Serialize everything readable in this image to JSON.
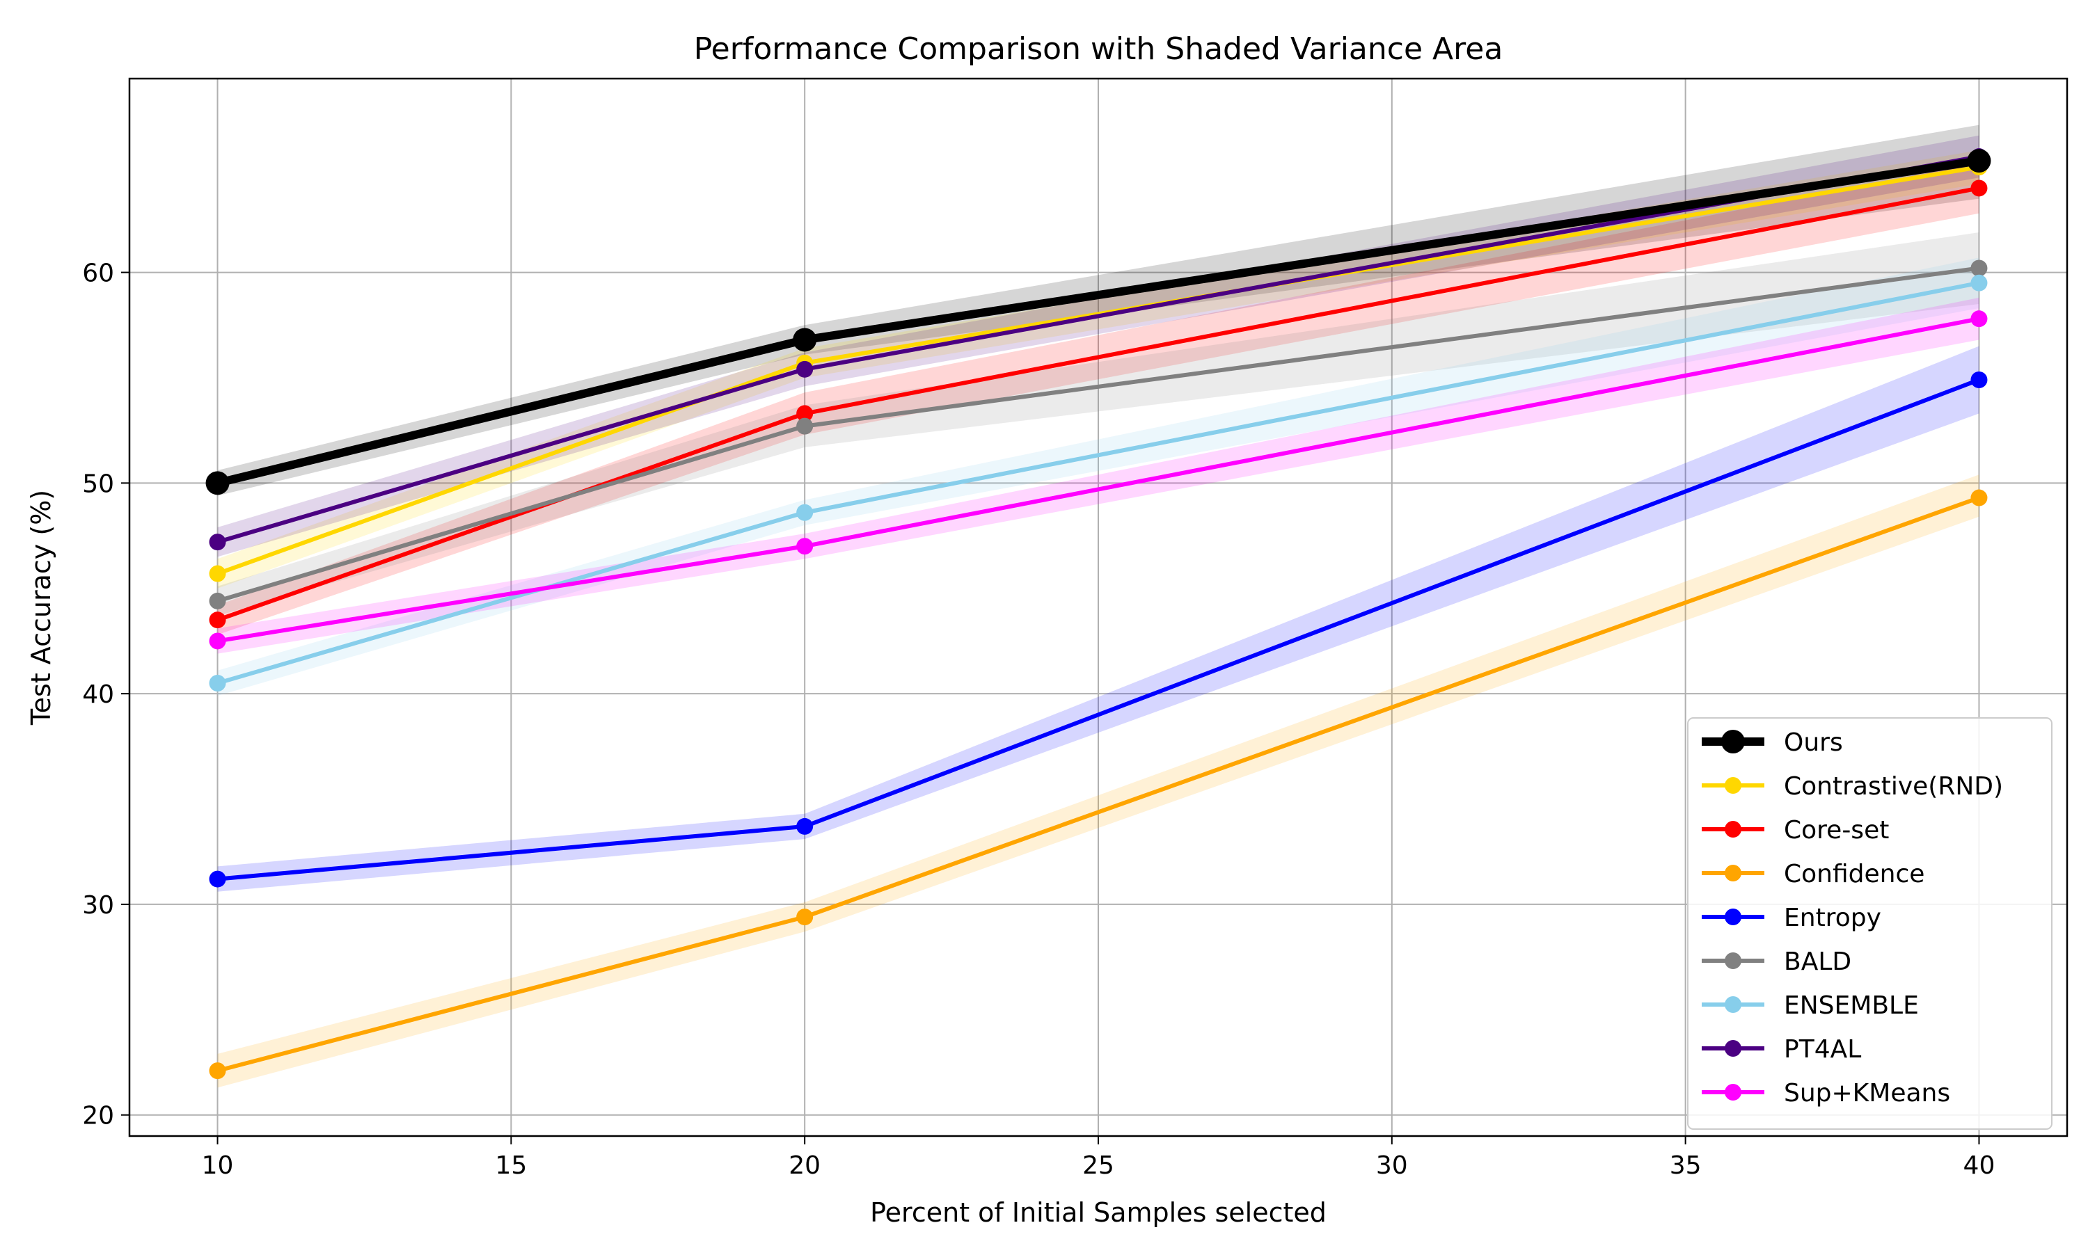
{
  "chart_data": {
    "type": "line",
    "title": "Performance Comparison with Shaded Variance Area",
    "xlabel": "Percent of Initial Samples selected",
    "ylabel": "Test Accuracy (%)",
    "xlim": [
      8.5,
      41.5
    ],
    "ylim": [
      19,
      69.2
    ],
    "xticks": [
      10,
      15,
      20,
      25,
      30,
      35,
      40
    ],
    "yticks": [
      20,
      30,
      40,
      50,
      60
    ],
    "grid": true,
    "legend_position": "bottom-right",
    "x": [
      10,
      20,
      40
    ],
    "series": [
      {
        "name": "Ours",
        "color": "#000000",
        "values": [
          50.0,
          56.8,
          65.3
        ],
        "lower": [
          49.4,
          56.1,
          63.5
        ],
        "upper": [
          50.6,
          57.5,
          67.0
        ],
        "bold": true
      },
      {
        "name": "Contrastive(RND)",
        "color": "#FFD700",
        "values": [
          45.7,
          55.7,
          65.0
        ],
        "lower": [
          45.0,
          55.0,
          64.2
        ],
        "upper": [
          46.4,
          56.4,
          65.8
        ]
      },
      {
        "name": "Core-set",
        "color": "#FF0000",
        "values": [
          43.5,
          53.3,
          64.0
        ],
        "lower": [
          42.8,
          52.3,
          62.8
        ],
        "upper": [
          44.2,
          54.3,
          65.2
        ]
      },
      {
        "name": "Confidence",
        "color": "#FFA500",
        "values": [
          22.1,
          29.4,
          49.3
        ],
        "lower": [
          21.3,
          28.7,
          48.4
        ],
        "upper": [
          22.9,
          30.1,
          50.4
        ]
      },
      {
        "name": "Entropy",
        "color": "#0000FF",
        "values": [
          31.2,
          33.7,
          54.9
        ],
        "lower": [
          30.6,
          33.1,
          53.3
        ],
        "upper": [
          31.8,
          34.3,
          56.5
        ]
      },
      {
        "name": "BALD",
        "color": "#808080",
        "values": [
          44.4,
          52.7,
          60.2
        ],
        "lower": [
          43.7,
          51.7,
          58.5
        ],
        "upper": [
          45.1,
          53.7,
          61.9
        ]
      },
      {
        "name": "ENSEMBLE",
        "color": "#87CEEB",
        "values": [
          40.5,
          48.6,
          59.5
        ],
        "lower": [
          39.9,
          48.0,
          58.3
        ],
        "upper": [
          41.1,
          49.2,
          60.7
        ]
      },
      {
        "name": "PT4AL",
        "color": "#4B0082",
        "values": [
          47.2,
          55.4,
          65.5
        ],
        "lower": [
          46.5,
          54.6,
          64.5
        ],
        "upper": [
          47.9,
          56.2,
          66.5
        ]
      },
      {
        "name": "Sup+KMeans",
        "color": "#FF00FF",
        "values": [
          42.5,
          47.0,
          57.8
        ],
        "lower": [
          41.9,
          46.4,
          56.8
        ],
        "upper": [
          43.1,
          47.6,
          58.8
        ]
      }
    ]
  }
}
